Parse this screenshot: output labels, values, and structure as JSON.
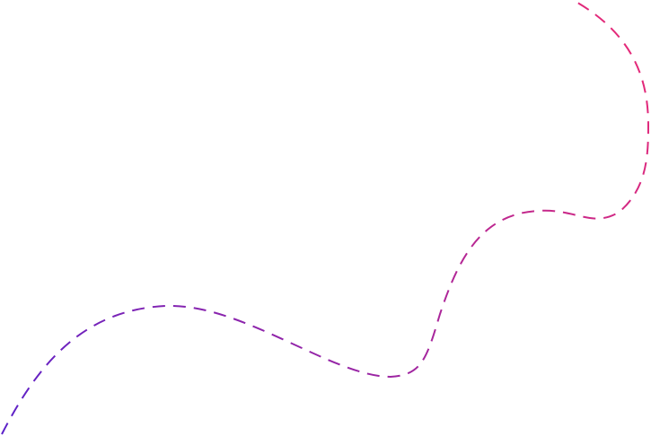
{
  "decoration": {
    "shape": "dashed-wave-curve",
    "gradient": {
      "start_color": "#5b21c9",
      "end_color": "#ec2a74"
    }
  }
}
